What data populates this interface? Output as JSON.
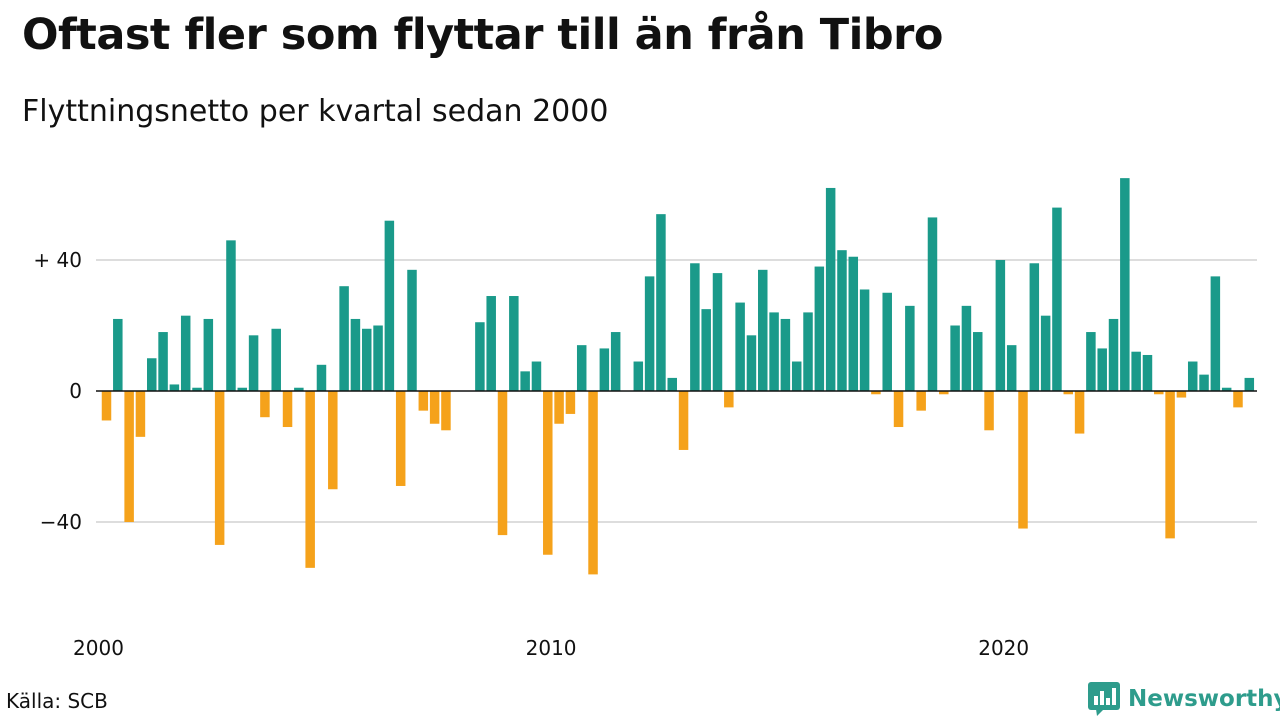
{
  "header": {
    "title": "Oftast fler som flyttar till än från Tibro",
    "subtitle": "Flyttningsnetto per kvartal sedan 2000"
  },
  "footer": {
    "source": "Källa: SCB",
    "brand": "Newsworthy"
  },
  "colors": {
    "positive": "#1a9a8a",
    "negative": "#f5a21b",
    "grid": "#dddddd",
    "baseline": "#111111",
    "brand": "#2e9c8c"
  },
  "icons": {
    "brand_logo": "newsworthy-chart-icon"
  },
  "chart_data": {
    "type": "bar",
    "title": "Oftast fler som flyttar till än från Tibro",
    "subtitle": "Flyttningsnetto per kvartal sedan 2000",
    "xlabel": "",
    "ylabel": "",
    "x_ticks": [
      "2000",
      "2010",
      "2020"
    ],
    "y_ticks": [
      {
        "value": 40,
        "label": "+ 40"
      },
      {
        "value": 0,
        "label": "0"
      },
      {
        "value": -40,
        "label": "−40"
      }
    ],
    "ylim": [
      -60,
      70
    ],
    "grid": true,
    "legend": "none",
    "start": "2000 Q1",
    "values": [
      -9,
      22,
      -40,
      -14,
      10,
      18,
      2,
      23,
      1,
      22,
      -47,
      46,
      1,
      17,
      -8,
      19,
      -11,
      1,
      -54,
      8,
      -30,
      32,
      22,
      19,
      20,
      52,
      -29,
      37,
      -6,
      -10,
      -12,
      0,
      0,
      21,
      29,
      -44,
      29,
      6,
      9,
      -50,
      -10,
      -7,
      14,
      -56,
      13,
      18,
      0,
      9,
      35,
      54,
      4,
      -18,
      39,
      25,
      36,
      -5,
      27,
      17,
      37,
      24,
      22,
      9,
      24,
      38,
      62,
      43,
      41,
      31,
      -1,
      30,
      -11,
      26,
      -6,
      53,
      -1,
      20,
      26,
      18,
      -12,
      40,
      14,
      -42,
      39,
      23,
      56,
      -1,
      -13,
      18,
      13,
      22,
      65,
      12,
      11,
      -1,
      -45,
      -2,
      9,
      5,
      35,
      1,
      -5,
      4
    ]
  }
}
